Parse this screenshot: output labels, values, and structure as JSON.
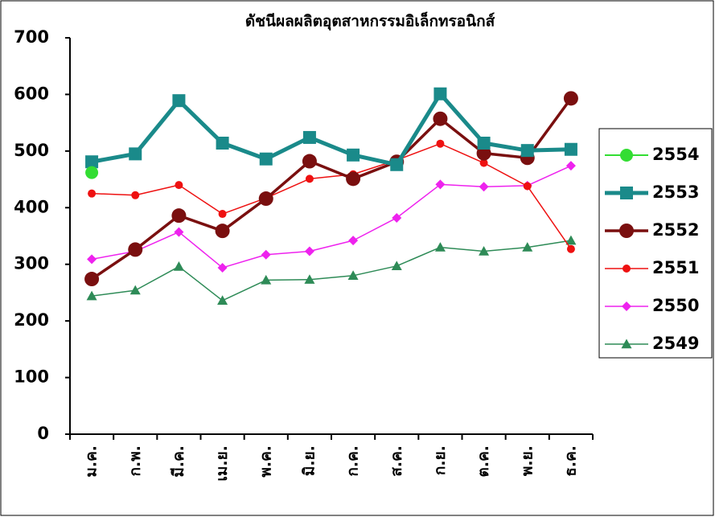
{
  "chart_data": {
    "type": "line",
    "title": "ดัชนีผลผลิตอุตสาหกรรมอิเล็กทรอนิกส์",
    "categories": [
      "ม.ค.",
      "ก.พ.",
      "มี.ค.",
      "เม.ย.",
      "พ.ค.",
      "มิ.ย.",
      "ก.ค.",
      "ส.ค.",
      "ก.ย.",
      "ต.ค.",
      "พ.ย.",
      "ธ.ค."
    ],
    "series": [
      {
        "name": "2554",
        "color": "#33dd33",
        "marker": "circle",
        "values": [
          462,
          null,
          null,
          null,
          null,
          null,
          null,
          null,
          null,
          null,
          null,
          null
        ]
      },
      {
        "name": "2553",
        "color": "#1a8a8a",
        "marker": "square",
        "values": [
          481,
          495,
          589,
          514,
          486,
          524,
          493,
          476,
          601,
          514,
          501,
          503
        ]
      },
      {
        "name": "2552",
        "color": "#7a0f0f",
        "marker": "circle",
        "values": [
          274,
          326,
          386,
          359,
          416,
          482,
          451,
          481,
          557,
          496,
          488,
          593
        ]
      },
      {
        "name": "2551",
        "color": "#ee1111",
        "marker": "circle",
        "values": [
          425,
          422,
          440,
          389,
          417,
          451,
          459,
          484,
          513,
          479,
          438,
          327
        ]
      },
      {
        "name": "2550",
        "color": "#ee22ee",
        "marker": "diamond",
        "values": [
          309,
          323,
          357,
          294,
          317,
          323,
          342,
          382,
          441,
          437,
          439,
          474
        ]
      },
      {
        "name": "2549",
        "color": "#2e8b57",
        "marker": "triangle",
        "values": [
          244,
          254,
          296,
          236,
          272,
          273,
          280,
          297,
          330,
          323,
          330,
          342
        ]
      }
    ],
    "ylim": [
      0,
      700
    ],
    "yticks": [
      0,
      100,
      200,
      300,
      400,
      500,
      600,
      700
    ],
    "grid": false,
    "legend": "right"
  }
}
